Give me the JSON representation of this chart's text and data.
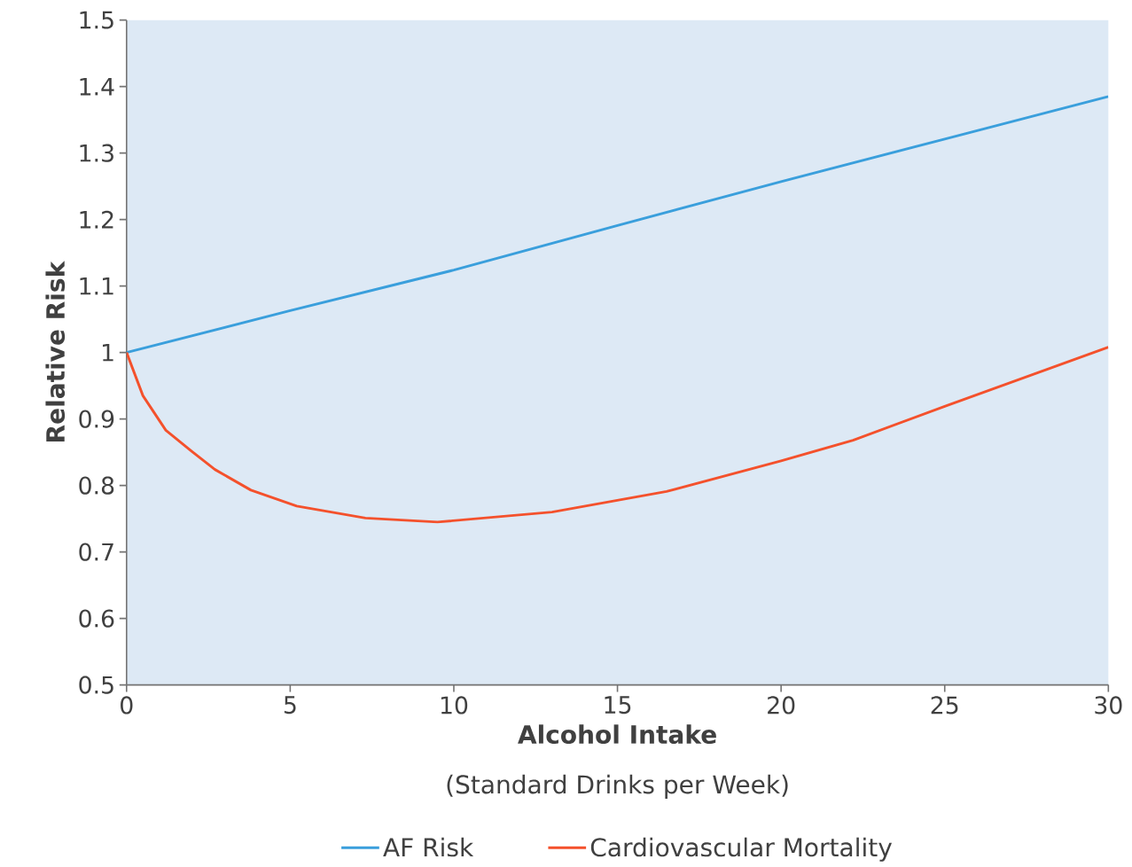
{
  "chart_data": {
    "type": "line",
    "xlabel": "Alcohol Intake",
    "ylabel": "Relative Risk",
    "annotations": [
      "(Standard Drinks per Week)"
    ],
    "xlim": [
      0,
      30
    ],
    "xticks": [
      0,
      5,
      10,
      15,
      20,
      25,
      30
    ],
    "ylim": [
      0.5,
      1.5
    ],
    "yticks": [
      0.5,
      0.6,
      0.7,
      0.8,
      0.9,
      1,
      1.1,
      1.2,
      1.3,
      1.4,
      1.5
    ],
    "grid": false,
    "legend": "bottom",
    "marker": "none",
    "line_style": "solid",
    "series": [
      {
        "name": "AF Risk",
        "color": "#3a9fdc",
        "x": [
          0,
          5,
          10,
          15,
          20,
          25,
          30
        ],
        "values": [
          1.0,
          1.063,
          1.124,
          1.191,
          1.257,
          1.321,
          1.385
        ]
      },
      {
        "name": "Cardiovascular Mortality",
        "color": "#f4512c",
        "x": [
          0,
          0.5,
          1.2,
          2,
          2.7,
          3.8,
          5.2,
          7.3,
          9.5,
          13,
          16.5,
          20,
          22.2,
          25,
          30
        ],
        "values": [
          1.0,
          0.935,
          0.883,
          0.851,
          0.824,
          0.793,
          0.769,
          0.751,
          0.745,
          0.76,
          0.791,
          0.837,
          0.868,
          0.919,
          1.008
        ]
      }
    ]
  }
}
